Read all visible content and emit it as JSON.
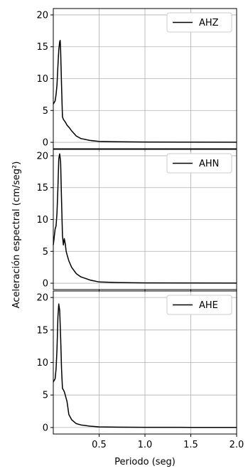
{
  "chart_data": {
    "type": "line",
    "xlabel": "Periodo (seg)",
    "ylabel": "Aceleración espectral (cm/seg²)",
    "xlim": [
      0,
      2.0
    ],
    "x_ticks": [
      0.5,
      1.0,
      1.5,
      2.0
    ],
    "x_tick_labels": [
      "0.5",
      "1.0",
      "1.5",
      "2.0"
    ],
    "grid": true,
    "legend_position": "top-right",
    "line_color": "#000000",
    "panels": [
      {
        "name": "AHZ",
        "ylim": [
          -1,
          21
        ],
        "y_ticks": [
          0,
          5,
          10,
          15,
          20
        ],
        "y_tick_labels": [
          "0",
          "5",
          "10",
          "15",
          "20"
        ],
        "x": [
          0.0,
          0.02,
          0.03,
          0.04,
          0.05,
          0.06,
          0.07,
          0.075,
          0.08,
          0.09,
          0.1,
          0.11,
          0.13,
          0.15,
          0.18,
          0.2,
          0.25,
          0.3,
          0.4,
          0.5,
          0.7,
          1.0,
          1.5,
          2.0
        ],
        "values": [
          6.0,
          6.5,
          7.5,
          9.0,
          12.0,
          14.5,
          15.8,
          16.0,
          14.5,
          9.0,
          4.0,
          3.6,
          3.2,
          2.7,
          2.2,
          1.8,
          1.0,
          0.6,
          0.3,
          0.15,
          0.08,
          0.05,
          0.03,
          0.02
        ]
      },
      {
        "name": "AHN",
        "ylim": [
          -1,
          21
        ],
        "y_ticks": [
          0,
          5,
          10,
          15,
          20
        ],
        "y_tick_labels": [
          "0",
          "5",
          "10",
          "15",
          "20"
        ],
        "x": [
          0.0,
          0.02,
          0.03,
          0.04,
          0.05,
          0.06,
          0.07,
          0.08,
          0.09,
          0.1,
          0.11,
          0.12,
          0.13,
          0.14,
          0.15,
          0.17,
          0.2,
          0.25,
          0.3,
          0.4,
          0.5,
          0.7,
          1.0,
          1.5,
          2.0
        ],
        "values": [
          6.0,
          8.5,
          9.0,
          11.0,
          15.0,
          19.5,
          20.3,
          19.0,
          13.0,
          7.5,
          6.0,
          7.0,
          6.2,
          5.0,
          4.5,
          3.5,
          2.5,
          1.5,
          1.0,
          0.5,
          0.2,
          0.1,
          0.05,
          0.03,
          0.02
        ]
      },
      {
        "name": "AHE",
        "ylim": [
          -1,
          21
        ],
        "y_ticks": [
          0,
          5,
          10,
          15,
          20
        ],
        "y_tick_labels": [
          "0",
          "5",
          "10",
          "15",
          "20"
        ],
        "x": [
          0.0,
          0.02,
          0.03,
          0.04,
          0.05,
          0.06,
          0.07,
          0.08,
          0.09,
          0.1,
          0.11,
          0.12,
          0.13,
          0.15,
          0.17,
          0.2,
          0.25,
          0.3,
          0.4,
          0.5,
          0.7,
          1.0,
          1.5,
          2.0
        ],
        "values": [
          7.0,
          7.5,
          9.0,
          12.0,
          17.0,
          19.0,
          18.0,
          14.0,
          9.0,
          6.0,
          5.8,
          5.5,
          5.0,
          4.0,
          2.0,
          1.2,
          0.6,
          0.4,
          0.2,
          0.1,
          0.05,
          0.03,
          0.02,
          0.02
        ]
      }
    ]
  }
}
